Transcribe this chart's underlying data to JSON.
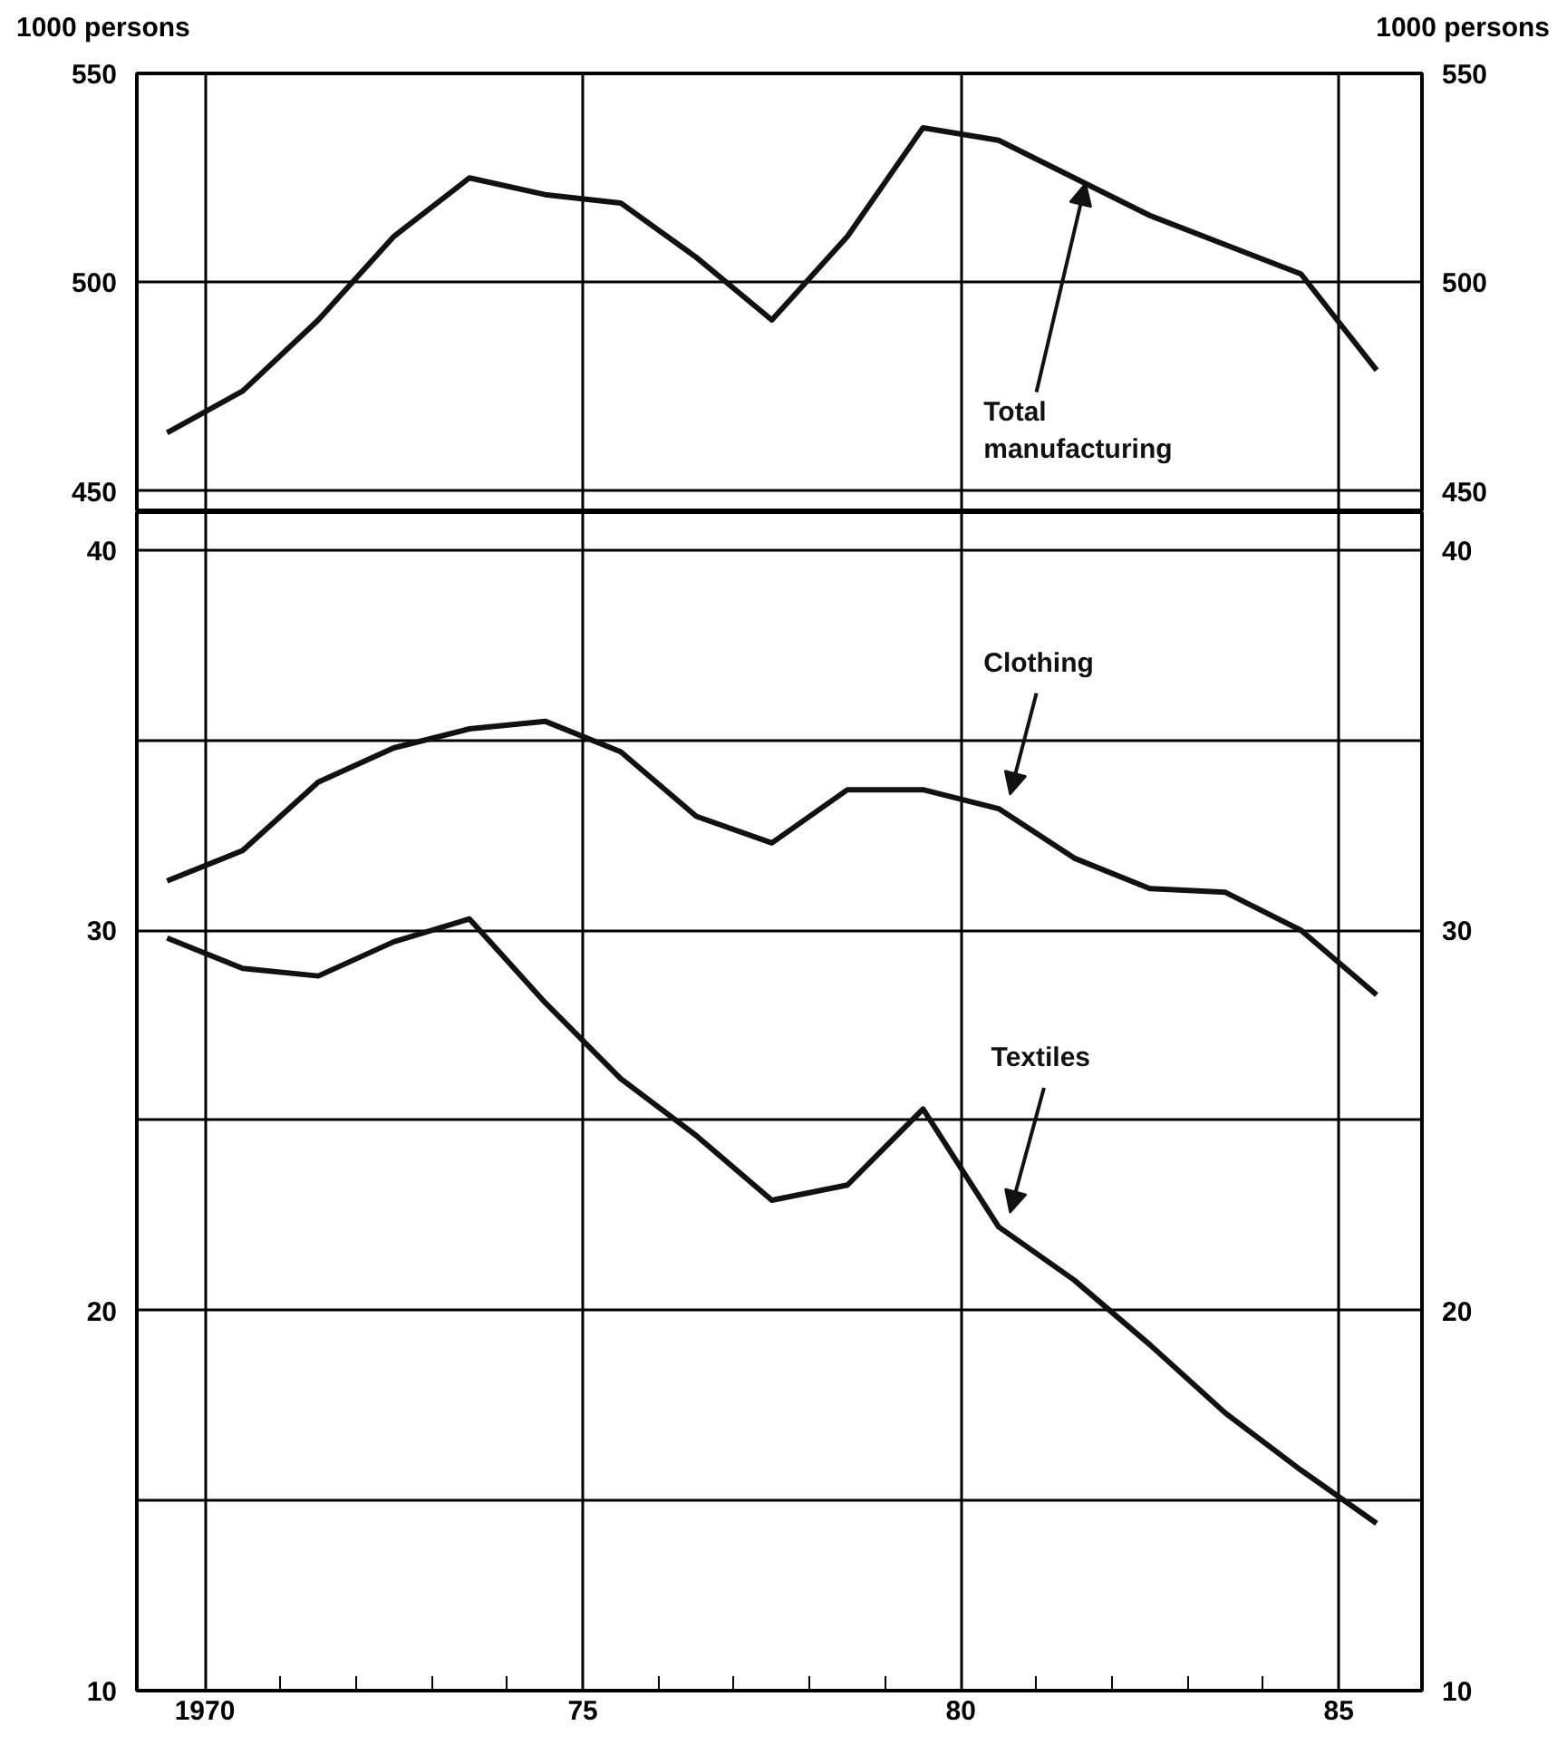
{
  "chart_data": [
    {
      "type": "line",
      "ylabel": "1000 persons",
      "y2label": "1000 persons",
      "x": [
        1969.5,
        1970.5,
        1971.5,
        1972.5,
        1973.5,
        1974.5,
        1975.5,
        1976.5,
        1977.5,
        1978.5,
        1979.5,
        1980.5,
        1981.5,
        1982.5,
        1983.5,
        1984.5,
        1985.5
      ],
      "series": [
        {
          "name": "Total manufacturing",
          "color": "#111111",
          "values": [
            464,
            474,
            491,
            511,
            525,
            521,
            519,
            506,
            491,
            511,
            537,
            534,
            525,
            516,
            509,
            502,
            479
          ]
        }
      ],
      "xlim": [
        1969.1,
        1986.1
      ],
      "xticks": [
        1970,
        1975,
        1980,
        1985
      ],
      "ylim": [
        445,
        550
      ],
      "yticks": [
        450,
        500,
        550
      ],
      "y2lim": [
        445,
        550
      ],
      "y2ticks": [
        450,
        500,
        550
      ],
      "grid": true,
      "tick_labels": "y",
      "legend": false,
      "marker": "none",
      "line_style": "solid"
    },
    {
      "type": "line",
      "x": [
        1969.5,
        1970.5,
        1971.5,
        1972.5,
        1973.5,
        1974.5,
        1975.5,
        1976.5,
        1977.5,
        1978.5,
        1979.5,
        1980.5,
        1981.5,
        1982.5,
        1983.5,
        1984.5,
        1985.5
      ],
      "series": [
        {
          "name": "Clothing",
          "color": "#111111",
          "values": [
            31.3,
            32.1,
            33.9,
            34.8,
            35.3,
            35.5,
            34.7,
            33.0,
            32.3,
            33.7,
            33.7,
            33.2,
            31.9,
            31.1,
            31.0,
            30.0,
            28.3
          ]
        },
        {
          "name": "Textiles",
          "color": "#111111",
          "values": [
            29.8,
            29.0,
            28.8,
            29.7,
            30.3,
            28.1,
            26.1,
            24.6,
            22.9,
            23.3,
            25.3,
            22.2,
            20.8,
            19.1,
            17.3,
            15.8,
            14.4
          ]
        }
      ],
      "xlim": [
        1969.1,
        1986.1
      ],
      "xticks": [
        {
          "value": 1970,
          "label": "1970"
        },
        {
          "value": 1971,
          "label": null
        },
        {
          "value": 1972,
          "label": null
        },
        {
          "value": 1973,
          "label": null
        },
        {
          "value": 1974,
          "label": null
        },
        {
          "value": 1975,
          "label": "75"
        },
        {
          "value": 1976,
          "label": null
        },
        {
          "value": 1977,
          "label": null
        },
        {
          "value": 1978,
          "label": null
        },
        {
          "value": 1979,
          "label": null
        },
        {
          "value": 1980,
          "label": "80"
        },
        {
          "value": 1981,
          "label": null
        },
        {
          "value": 1982,
          "label": null
        },
        {
          "value": 1983,
          "label": null
        },
        {
          "value": 1984,
          "label": null
        },
        {
          "value": 1985,
          "label": "85"
        }
      ],
      "ylim": [
        10,
        41
      ],
      "yticks": [
        10,
        {
          "value": 15,
          "label": null
        },
        20,
        {
          "value": 25,
          "label": null
        },
        30,
        {
          "value": 35,
          "label": null
        },
        40
      ],
      "y2lim": [
        10,
        41
      ],
      "y2ticks": [
        10,
        {
          "value": 15,
          "label": null
        },
        20,
        {
          "value": 25,
          "label": null
        },
        30,
        {
          "value": 35,
          "label": null
        },
        40
      ],
      "grid": true,
      "legend": false,
      "marker": "none",
      "line_style": "solid"
    }
  ]
}
